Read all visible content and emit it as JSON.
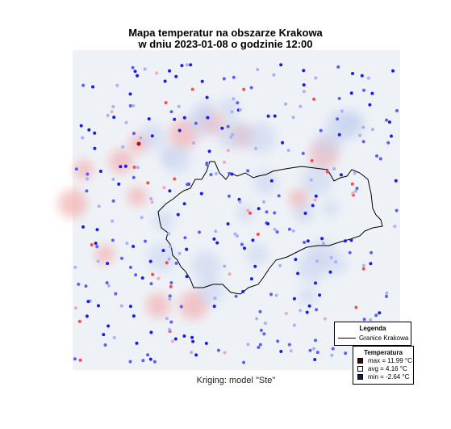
{
  "title_line1": "Mapa temperatur na obszarze Krakowa",
  "title_line2": "w dniu 2023-01-08 o godzinie 12:00",
  "caption": "Kriging: model \"Ste\"",
  "legend": {
    "title": "Legenda",
    "boundary_label": "Granice Krakowa"
  },
  "temp_legend": {
    "title": "Temperatura",
    "items": [
      {
        "label": "max =  11.99 °C",
        "color": "#3a0a0a"
      },
      {
        "label": "avg =  4.16 °C",
        "color": "#ffffff"
      },
      {
        "label": "min =  -2.64 °C",
        "color": "#0b1e3c"
      }
    ]
  },
  "colors": {
    "background": "#eef2f7",
    "cold": "#1a1aff",
    "warm": "#e02020",
    "boundary": "#000000"
  },
  "stations_note": "",
  "stats": {
    "min_c": -2.64,
    "avg_c": 4.16,
    "max_c": 11.99
  }
}
